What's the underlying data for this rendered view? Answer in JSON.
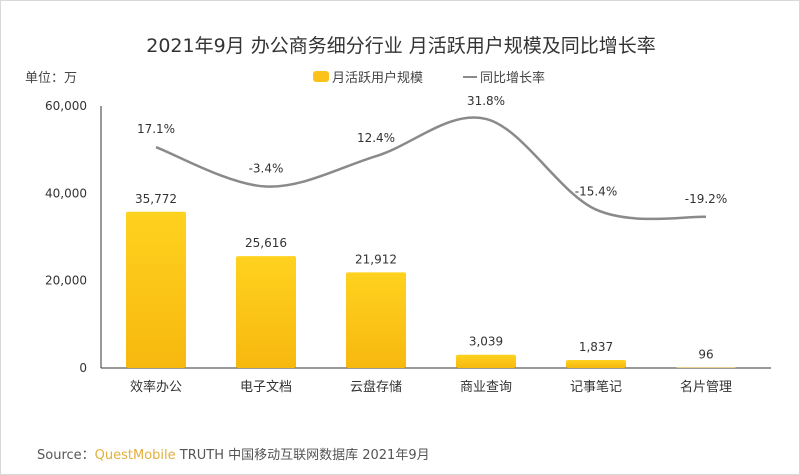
{
  "chart_data": {
    "type": "bar",
    "title": "2021年9月 办公商务细分行业 月活跃用户规模及同比增长率",
    "unit_label": "单位：万",
    "categories": [
      "效率办公",
      "电子文档",
      "云盘存储",
      "商业查询",
      "记事笔记",
      "名片管理"
    ],
    "series": [
      {
        "name": "月活跃用户规模",
        "type": "bar",
        "values": [
          35772,
          25616,
          21912,
          3039,
          1837,
          96
        ],
        "labels": [
          "35,772",
          "25,616",
          "21,912",
          "3,039",
          "1,837",
          "96"
        ],
        "color": "#FBC21A"
      },
      {
        "name": "同比增长率",
        "type": "line",
        "values": [
          17.1,
          -3.4,
          12.4,
          31.8,
          -15.4,
          -19.2
        ],
        "labels": [
          "17.1%",
          "-3.4%",
          "12.4%",
          "31.8%",
          "-15.4%",
          "-19.2%"
        ],
        "color": "#8a8a8a"
      }
    ],
    "ylim": [
      0,
      60000
    ],
    "yticks": [
      "0",
      "20,000",
      "40,000",
      "60,000"
    ],
    "ytick_values": [
      0,
      20000,
      40000,
      60000
    ],
    "grid": false,
    "legend": "top-center"
  },
  "watermark": "QUEST MOBILE",
  "source": {
    "prefix": "Source：",
    "brand": "QuestMobile",
    "text": " TRUTH 中国移动互联网数据库 2021年9月"
  }
}
